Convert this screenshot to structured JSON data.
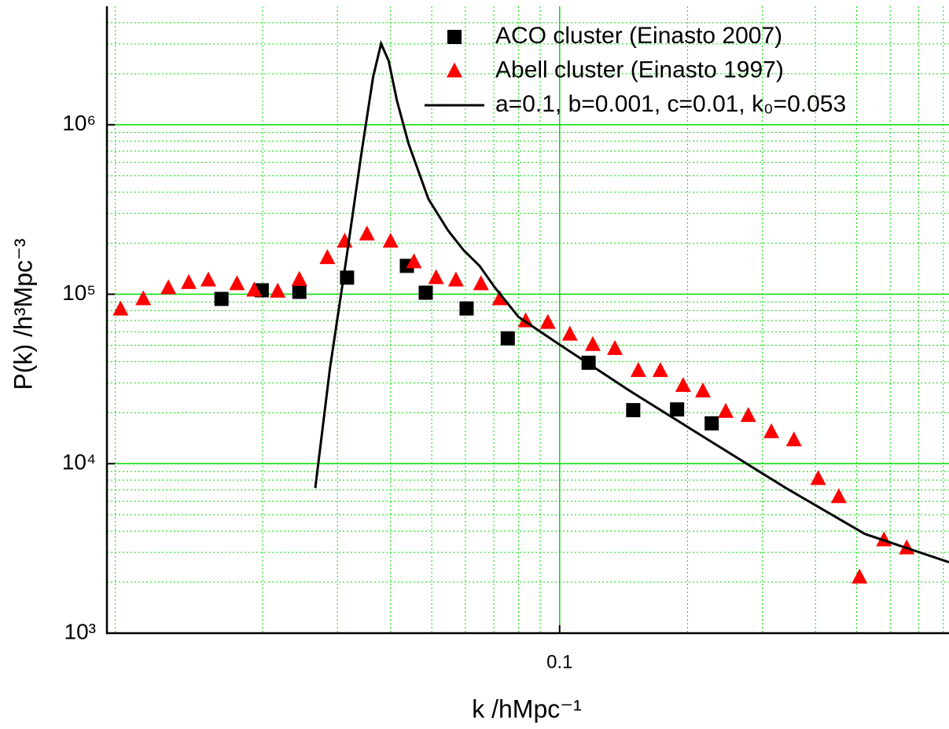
{
  "chart_data": {
    "type": "scatter",
    "xlabel": "k /hMpc⁻¹",
    "ylabel": "P(k) /h³Mpc⁻³",
    "xscale": "log",
    "yscale": "log",
    "xlim": [
      0.0086,
      0.825
    ],
    "ylim": [
      1000,
      5000000
    ],
    "xticks": [
      0.1
    ],
    "yticks": [
      {
        "value": 1000,
        "label": "10³"
      },
      {
        "value": 10000,
        "label": "10⁴"
      },
      {
        "value": 100000,
        "label": "10⁵"
      },
      {
        "value": 1000000,
        "label": "10⁶"
      }
    ],
    "grid": true,
    "grid_color": "#00dd00",
    "legend": "upper right",
    "series": [
      {
        "name": "ACO cluster (Einasto 2007)",
        "type": "scatter",
        "marker": "square",
        "color": "#000000",
        "x": [
          0.016,
          0.0199,
          0.0244,
          0.0316,
          0.0437,
          0.0484,
          0.0604,
          0.0755,
          0.117,
          0.149,
          0.189,
          0.228
        ],
        "values": [
          93800,
          105500,
          103300,
          125300,
          147000,
          102100,
          82400,
          54900,
          39400,
          20700,
          20900,
          17300
        ]
      },
      {
        "name": "Abell cluster (Einasto 1997)",
        "type": "scatter",
        "marker": "triangle",
        "color": "#ff0000",
        "x": [
          0.00926,
          0.01047,
          0.012,
          0.0134,
          0.0149,
          0.0174,
          0.0191,
          0.0217,
          0.0244,
          0.0284,
          0.0312,
          0.0352,
          0.04,
          0.0454,
          0.0512,
          0.057,
          0.0653,
          0.0723,
          0.0832,
          0.0938,
          0.1057,
          0.1197,
          0.1349,
          0.1532,
          0.1726,
          0.1953,
          0.2174,
          0.246,
          0.278,
          0.315,
          0.356,
          0.406,
          0.454,
          0.508,
          0.58,
          0.656
        ],
        "values": [
          81600,
          93800,
          109000,
          117000,
          121000,
          115000,
          105500,
          104000,
          122000,
          164000,
          205000,
          226000,
          205000,
          155000,
          125000,
          121000,
          115000,
          93800,
          69500,
          68000,
          58000,
          50400,
          47700,
          35400,
          35400,
          28900,
          26800,
          20300,
          19200,
          15400,
          13800,
          8160,
          6380,
          2140,
          3540,
          3180
        ]
      },
      {
        "name": "a=0.1,  b=0.001,  c=0.01,  k₀=0.053",
        "type": "line",
        "color": "#000000",
        "x": [
          0.0266,
          0.0288,
          0.0313,
          0.0341,
          0.0364,
          0.038,
          0.0396,
          0.0414,
          0.0441,
          0.0491,
          0.0546,
          0.0594,
          0.0648,
          0.0705,
          0.0801,
          0.1,
          0.1456,
          0.223,
          0.341,
          0.523,
          0.825
        ],
        "values": [
          7180,
          36500,
          147000,
          659000,
          1920000,
          3010000,
          2380000,
          1390000,
          773000,
          365000,
          238000,
          182000,
          147000,
          109000,
          73300,
          50400,
          27100,
          13900,
          7180,
          3850,
          2620
        ]
      }
    ]
  }
}
